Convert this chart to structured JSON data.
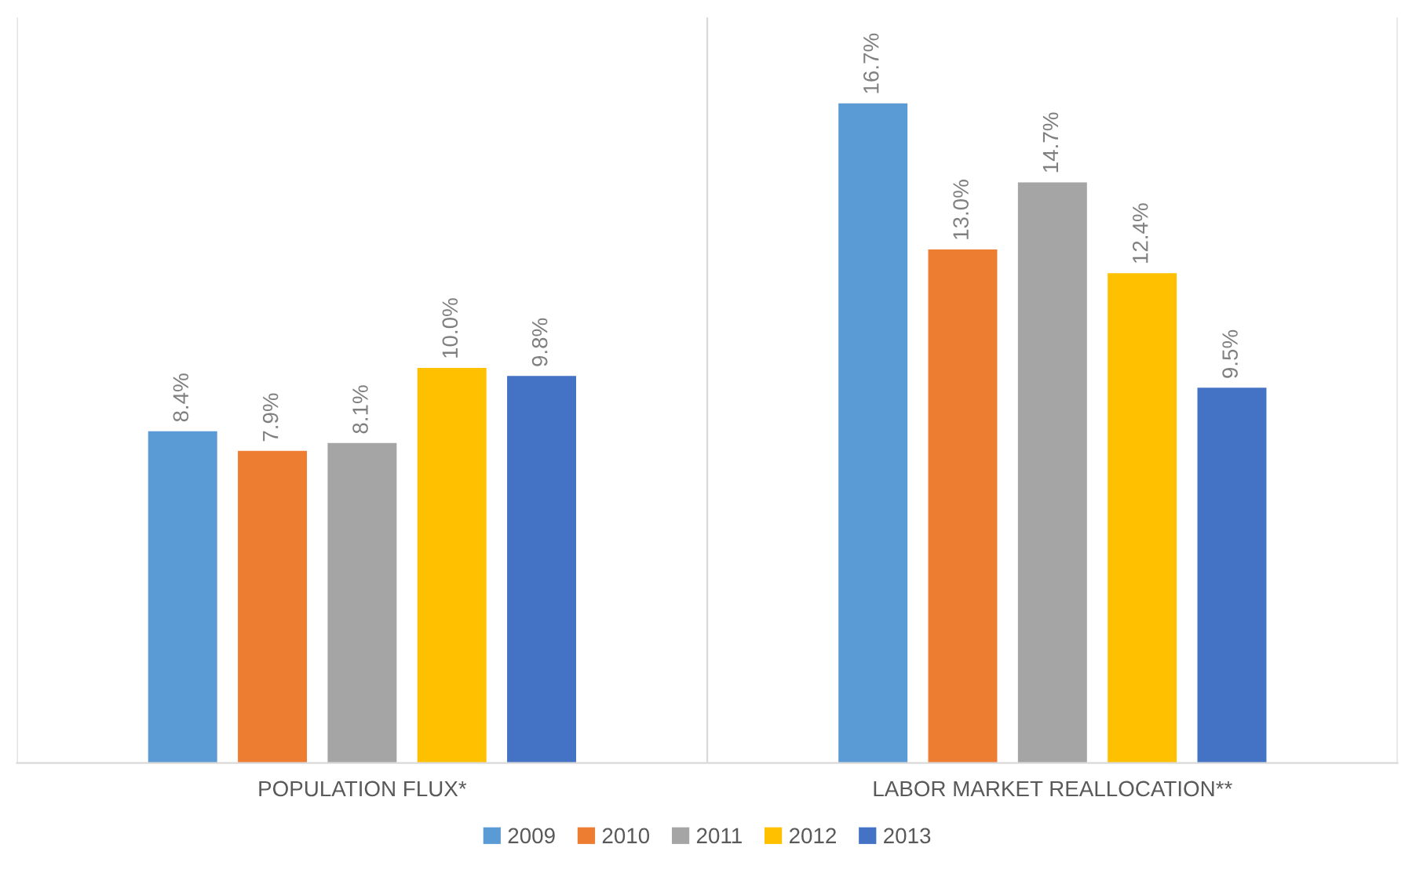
{
  "chart_data": {
    "type": "bar",
    "categories": [
      "POPULATION FLUX*",
      "LABOR MARKET REALLOCATION**"
    ],
    "series": [
      {
        "name": "2009",
        "color": "#5b9bd5",
        "values": [
          8.4,
          16.7
        ],
        "value_labels": [
          "8.4%",
          "16.7%"
        ]
      },
      {
        "name": "2010",
        "color": "#ed7d31",
        "values": [
          7.9,
          13.0
        ],
        "value_labels": [
          "7.9%",
          "13.0%"
        ]
      },
      {
        "name": "2011",
        "color": "#a5a5a5",
        "values": [
          8.1,
          14.7
        ],
        "value_labels": [
          "8.1%",
          "14.7%"
        ]
      },
      {
        "name": "2012",
        "color": "#ffc000",
        "values": [
          10.0,
          12.4
        ],
        "value_labels": [
          "10.0%",
          "12.4%"
        ]
      },
      {
        "name": "2013",
        "color": "#4472c4",
        "values": [
          9.8,
          9.5
        ],
        "value_labels": [
          "9.8%",
          "9.5%"
        ]
      }
    ],
    "legend": "bottom",
    "grid": false
  }
}
